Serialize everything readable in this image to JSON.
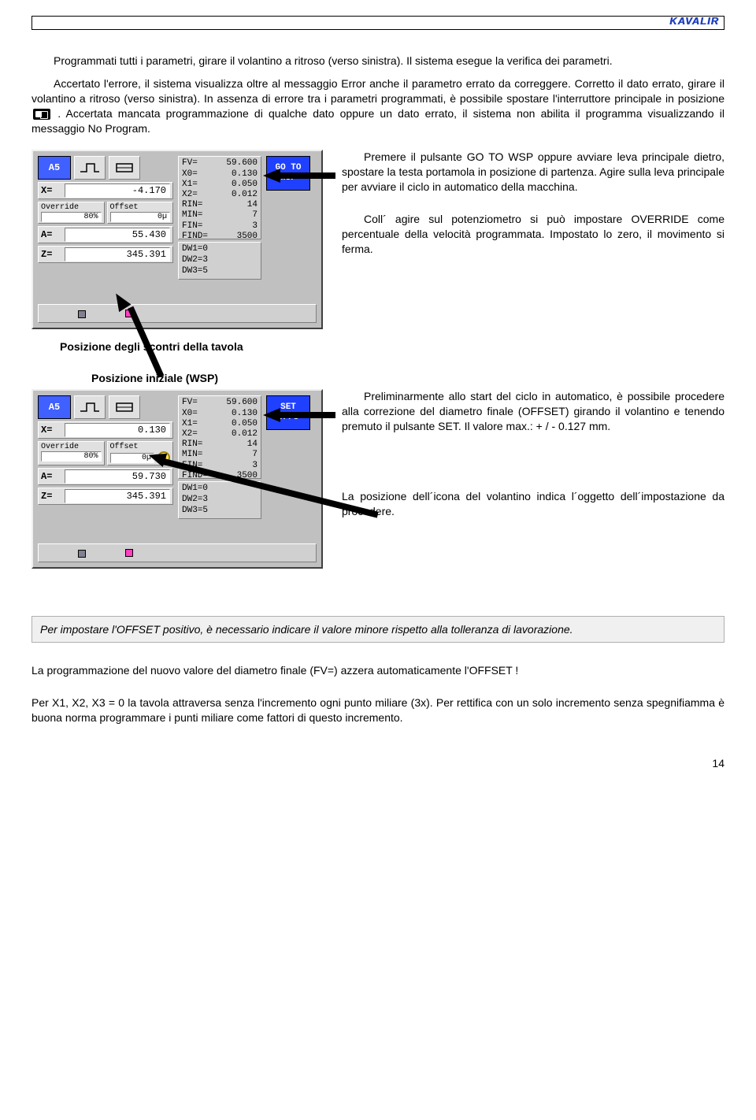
{
  "logo": "KAVALIR",
  "paragraphs": {
    "p1": "Programmati tutti i parametri, girare il volantino a ritroso (verso sinistra). Il sistema esegue la verifica dei parametri.",
    "p2a": "Accertato l'errore, il sistema visualizza oltre al messaggio Error anche il parametro errato da correggere. Corretto il dato errato, girare il volantino a ritroso (verso sinistra). In assenza di errore tra i parametri programmati, è possibile spostare l'interruttore principale in posizione ",
    "p2b": ". Accertata mancata programmazione di qualche dato oppure un dato errato, il sistema non abilita il programma visualizzando il messaggio No Program.",
    "p3": "Premere il pulsante GO TO WSP oppure avviare leva principale dietro, spostare la testa portamola in posizione di partenza. Agire sulla leva principale per avviare il ciclo in automatico della macchina.",
    "p4": "Coll´ agire sul potenziometro si può impostare OVERRIDE come percentuale della velocità programmata. Impostato lo zero, il movimento si ferma.",
    "cap1": "Posizione degli scontri della tavola",
    "cap2": "Posizione iniziale (WSP)",
    "p5": "Preliminarmente allo start del ciclo in automatico, è possibile procedere alla correzione del diametro finale (OFFSET) girando il volantino e tenendo premuto il pulsante SET. Il valore max.: + / - 0.127 mm.",
    "p6": "La posizione dell´icona del volantino indica l´oggetto dell´impostazione da procedere.",
    "note": "Per impostare l'OFFSET positivo, è necessario indicare il valore minore rispetto alla tolleranza di lavorazione.",
    "p7": "La programmazione del nuovo valore del diametro finale (FV=) azzera automaticamente l'OFFSET !",
    "p8": "Per X1, X2, X3 = 0 la tavola attraversa senza l'incremento ogni punto miliare (3x). Per rettifica con un solo incremento senza spegnifiamma è buona norma programmare i punti miliare come fattori di questo incremento."
  },
  "panel1": {
    "prog": "A5",
    "button": "GO TO\nWSP",
    "params": [
      {
        "k": "FV=",
        "v": "59.600"
      },
      {
        "k": "X0=",
        "v": "0.130"
      },
      {
        "k": "X1=",
        "v": "0.050"
      },
      {
        "k": "X2=",
        "v": "0.012"
      },
      {
        "k": "RIN=",
        "v": "14"
      },
      {
        "k": "MIN=",
        "v": "7"
      },
      {
        "k": "FIN=",
        "v": "3"
      },
      {
        "k": "FIND=",
        "v": "3500"
      }
    ],
    "dw": [
      {
        "k": "DW1=",
        "v": "0"
      },
      {
        "k": "DW2=",
        "v": "3"
      },
      {
        "k": "DW3=",
        "v": "5"
      }
    ],
    "x_label": "X=",
    "x_val": "-4.170",
    "override_lbl": "Override",
    "override_val": "80%",
    "offset_lbl": "Offset",
    "offset_val": "0µ",
    "a_label": "A=",
    "a_val": "55.430",
    "z_label": "Z=",
    "z_val": "345.391"
  },
  "panel2": {
    "prog": "A5",
    "button": "SET\nOFFS",
    "params": [
      {
        "k": "FV=",
        "v": "59.600"
      },
      {
        "k": "X0=",
        "v": "0.130"
      },
      {
        "k": "X1=",
        "v": "0.050"
      },
      {
        "k": "X2=",
        "v": "0.012"
      },
      {
        "k": "RIN=",
        "v": "14"
      },
      {
        "k": "MIN=",
        "v": "7"
      },
      {
        "k": "FIN=",
        "v": "3"
      },
      {
        "k": "FIND=",
        "v": "3500"
      }
    ],
    "dw": [
      {
        "k": "DW1=",
        "v": "0"
      },
      {
        "k": "DW2=",
        "v": "3"
      },
      {
        "k": "DW3=",
        "v": "5"
      }
    ],
    "x_label": "X=",
    "x_val": "0.130",
    "override_lbl": "Override",
    "override_val": "80%",
    "offset_lbl": "Offset",
    "offset_val": "0µ",
    "a_label": "A=",
    "a_val": "59.730",
    "z_label": "Z=",
    "z_val": "345.391"
  },
  "page_number": "14"
}
